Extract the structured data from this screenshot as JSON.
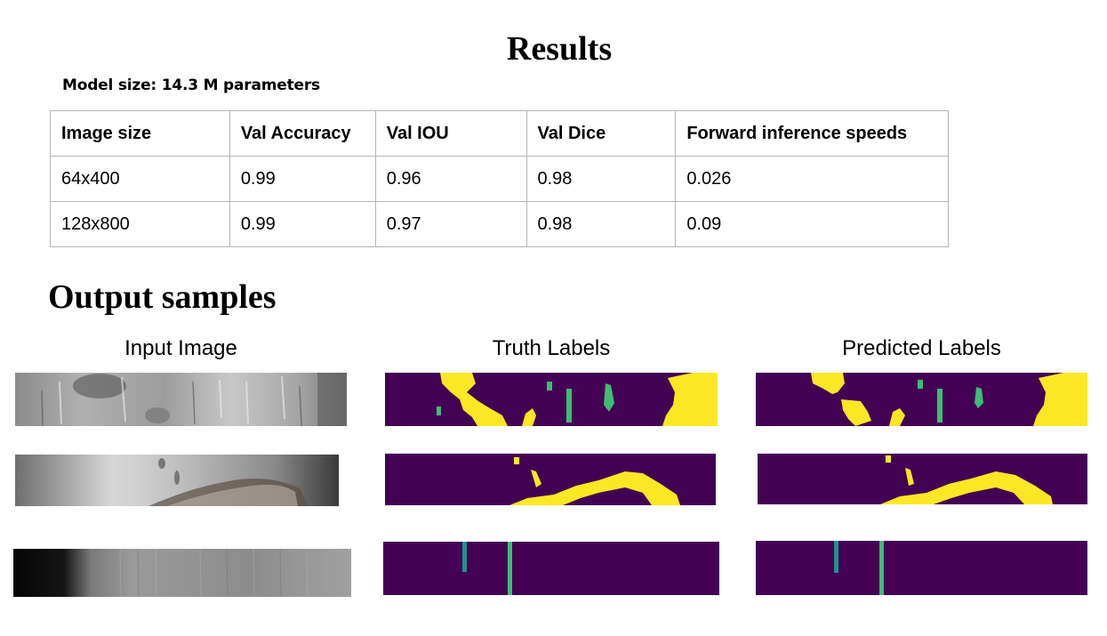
{
  "title": "Results",
  "model_size": "Model size: 14.3 M parameters",
  "table": {
    "headers": [
      "Image size",
      "Val Accuracy",
      "Val IOU",
      "Val Dice",
      "Forward inference speeds"
    ],
    "rows": [
      [
        "64x400",
        "0.99",
        "0.96",
        "0.98",
        "0.026"
      ],
      [
        "128x800",
        "0.99",
        "0.97",
        "0.98",
        "0.09"
      ]
    ]
  },
  "output_samples": {
    "heading": "Output samples",
    "columns": [
      "Input Image",
      "Truth Labels",
      "Predicted Labels"
    ]
  },
  "colors": {
    "mask_background": "#440154",
    "mask_yellow": "#fde725",
    "mask_green": "#3fbc73",
    "mask_teal": "#21918c"
  }
}
